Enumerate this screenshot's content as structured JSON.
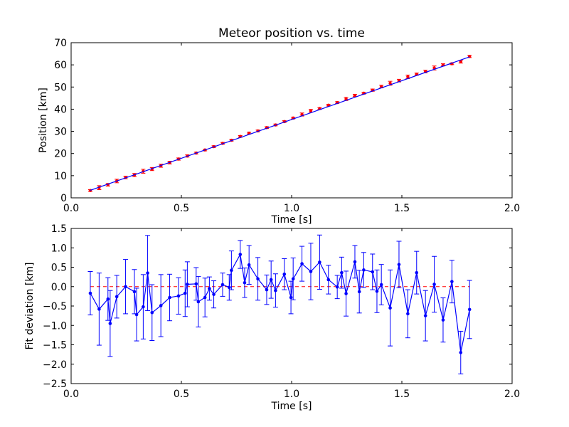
{
  "colors": {
    "fit_line": "#0000ff",
    "position_points": "#ff0000",
    "residual_series": "#0000ff",
    "zero_line": "#ff0000"
  },
  "chart_data": [
    {
      "type": "scatter",
      "title": "Meteor position vs. time",
      "xlabel": "Time [s]",
      "ylabel": "Position [km]",
      "xlim": [
        0.0,
        2.0
      ],
      "ylim": [
        0,
        70
      ],
      "xticks": [
        "0.0",
        "0.5",
        "1.0",
        "1.5",
        "2.0"
      ],
      "yticks": [
        "0",
        "10",
        "20",
        "30",
        "40",
        "50",
        "60",
        "70"
      ],
      "grid": false,
      "series": [
        {
          "kind": "errorbar-points",
          "x": [
            0.087,
            0.127,
            0.167,
            0.207,
            0.247,
            0.287,
            0.327,
            0.367,
            0.407,
            0.447,
            0.487,
            0.527,
            0.567,
            0.607,
            0.647,
            0.687,
            0.727,
            0.767,
            0.807,
            0.847,
            0.887,
            0.927,
            0.967,
            1.007,
            1.047,
            1.087,
            1.127,
            1.167,
            1.207,
            1.247,
            1.287,
            1.327,
            1.367,
            1.407,
            1.447,
            1.487,
            1.527,
            1.567,
            1.607,
            1.647,
            1.687,
            1.727,
            1.767,
            1.807
          ],
          "y": [
            3.3,
            4.6,
            5.9,
            7.6,
            9.2,
            10.3,
            12.0,
            13.0,
            14.5,
            15.9,
            17.5,
            18.9,
            20.2,
            21.6,
            23.1,
            24.6,
            26.0,
            27.7,
            29.2,
            30.2,
            31.7,
            32.9,
            34.4,
            36.0,
            37.6,
            39.3,
            40.3,
            41.8,
            43.0,
            44.6,
            46.2,
            47.2,
            48.6,
            50.2,
            51.7,
            52.9,
            54.6,
            55.8,
            57.0,
            58.6,
            60.0,
            60.5,
            61.4,
            63.8
          ],
          "err": [
            0.4,
            0.9,
            0.6,
            0.8,
            0.6,
            0.7,
            0.9,
            0.7,
            0.7,
            0.6,
            0.5,
            0.5,
            0.4,
            0.4,
            0.4,
            0.4,
            0.4,
            0.4,
            0.4,
            0.4,
            0.4,
            0.4,
            0.4,
            0.4,
            0.7,
            0.6,
            0.4,
            0.4,
            0.4,
            0.7,
            0.5,
            0.4,
            0.5,
            0.6,
            0.9,
            0.6,
            0.8,
            0.5,
            0.6,
            0.9,
            0.5,
            0.4,
            0.6,
            0.5
          ]
        },
        {
          "kind": "fit-line",
          "x": [
            0.087,
            1.807
          ],
          "y": [
            3.4,
            63.6
          ]
        }
      ]
    },
    {
      "type": "line",
      "title": "",
      "xlabel": "Time [s]",
      "ylabel": "Fit deviation [km]",
      "xlim": [
        0.0,
        2.0
      ],
      "ylim": [
        -2.5,
        1.5
      ],
      "xticks": [
        "0.0",
        "0.5",
        "1.0",
        "1.5",
        "2.0"
      ],
      "yticks": [
        "1.5",
        "1.0",
        "0.5",
        "0.0",
        "−0.5",
        "−1.0",
        "−1.5",
        "−2.0",
        "−2.5"
      ],
      "ytick_values": [
        1.5,
        1.0,
        0.5,
        0.0,
        -0.5,
        -1.0,
        -1.5,
        -2.0,
        -2.5
      ],
      "grid": false,
      "reference_line": {
        "y": 0.0,
        "style": "dashed"
      },
      "series": [
        {
          "kind": "errorbar-line",
          "x": [
            0.087,
            0.127,
            0.167,
            0.177,
            0.207,
            0.247,
            0.287,
            0.297,
            0.327,
            0.347,
            0.367,
            0.407,
            0.447,
            0.487,
            0.517,
            0.527,
            0.567,
            0.577,
            0.607,
            0.627,
            0.647,
            0.687,
            0.717,
            0.727,
            0.767,
            0.787,
            0.807,
            0.847,
            0.887,
            0.907,
            0.927,
            0.967,
            0.997,
            1.007,
            1.047,
            1.087,
            1.127,
            1.167,
            1.207,
            1.227,
            1.247,
            1.287,
            1.307,
            1.327,
            1.367,
            1.387,
            1.407,
            1.447,
            1.487,
            1.527,
            1.567,
            1.607,
            1.647,
            1.687,
            1.727,
            1.767,
            1.807
          ],
          "y": [
            -0.17,
            -0.58,
            -0.32,
            -0.95,
            -0.26,
            0.0,
            -0.13,
            -0.72,
            -0.52,
            0.35,
            -0.67,
            -0.49,
            -0.28,
            -0.24,
            -0.17,
            0.06,
            0.07,
            -0.39,
            -0.28,
            -0.05,
            -0.2,
            0.05,
            -0.02,
            0.42,
            0.83,
            0.1,
            0.56,
            0.2,
            -0.08,
            0.18,
            -0.1,
            0.32,
            -0.28,
            0.2,
            0.59,
            0.39,
            0.63,
            0.18,
            -0.01,
            0.36,
            -0.18,
            0.64,
            -0.13,
            0.43,
            0.38,
            -0.12,
            0.05,
            -0.55,
            0.57,
            -0.7,
            0.36,
            -0.75,
            0.06,
            -0.86,
            0.13,
            -1.7,
            -0.59
          ],
          "err": [
            0.56,
            0.93,
            0.55,
            0.85,
            0.55,
            0.7,
            0.57,
            0.68,
            0.83,
            0.97,
            0.72,
            0.8,
            0.6,
            0.47,
            0.6,
            0.58,
            0.42,
            0.65,
            0.5,
            0.3,
            0.35,
            0.3,
            0.33,
            0.5,
            0.36,
            0.38,
            0.5,
            0.55,
            0.38,
            0.48,
            0.43,
            0.4,
            0.42,
            0.54,
            0.45,
            0.73,
            0.7,
            0.37,
            0.3,
            0.4,
            0.58,
            0.42,
            0.55,
            0.45,
            0.46,
            0.55,
            0.52,
            0.98,
            0.6,
            0.62,
            0.55,
            0.65,
            0.72,
            0.57,
            0.55,
            0.55,
            0.75
          ]
        }
      ]
    }
  ]
}
